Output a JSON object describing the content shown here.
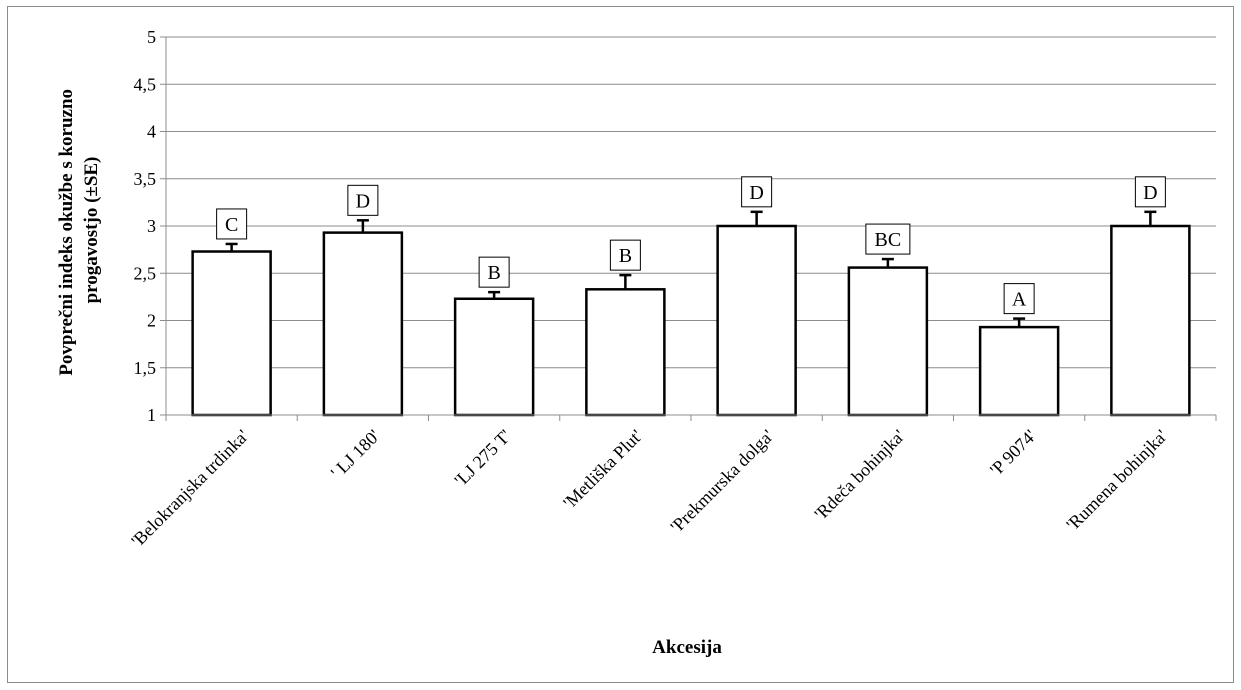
{
  "chart_data": {
    "type": "bar",
    "categories": [
      "'Belokranjska trdinka'",
      "' LJ 180'",
      "'LJ 275 T'",
      "'Metliška Plut'",
      "'Prekmurska dolga'",
      "'Rdeča bohinjka'",
      "'P 9074'",
      "'Rumena bohinjka'"
    ],
    "values": [
      2.73,
      2.93,
      2.23,
      2.33,
      3.0,
      2.56,
      1.93,
      3.0
    ],
    "errors": [
      0.08,
      0.13,
      0.07,
      0.15,
      0.15,
      0.09,
      0.09,
      0.15
    ],
    "significance_letters": [
      "C",
      "D",
      "B",
      "B",
      "D",
      "BC",
      "A",
      "D"
    ],
    "xlabel": "Akcesija",
    "ylabel_lines": [
      "Povprečni indeks okužbe s koruzno",
      "progavostjo (±SE)"
    ],
    "ylim": [
      1,
      5
    ],
    "yticks": [
      "1",
      "1,5",
      "2",
      "2,5",
      "3",
      "3,5",
      "4",
      "4,5",
      "5"
    ],
    "grid": true,
    "legend": "none",
    "colors": {
      "bar_fill": "#ffffff",
      "bar_stroke": "#000000",
      "grid": "#8c8c8c"
    }
  }
}
